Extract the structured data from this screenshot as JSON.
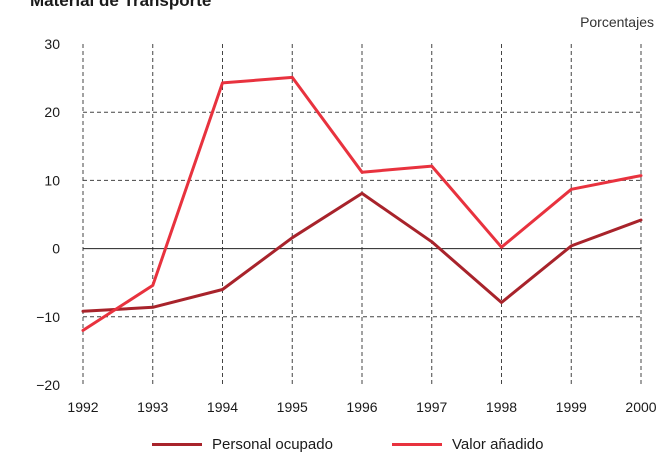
{
  "colors": {
    "personal": "#a8232b",
    "valor": "#e8323e",
    "grid": "#444444",
    "zero_line": "#222222"
  },
  "chart_data": {
    "type": "line",
    "title": "Material de Transporte",
    "units_label": "Porcentajes",
    "x": [
      "1992",
      "1993",
      "1994",
      "1995",
      "1996",
      "1997",
      "1998",
      "1999",
      "2000"
    ],
    "series": [
      {
        "name": "Personal ocupado",
        "values": [
          -9.2,
          -8.6,
          -6.0,
          1.6,
          8.1,
          1.0,
          -7.9,
          0.4,
          4.2
        ]
      },
      {
        "name": "Valor añadido",
        "values": [
          -12.0,
          -5.4,
          24.3,
          25.1,
          11.2,
          12.1,
          0.2,
          8.7,
          10.7
        ]
      }
    ],
    "y_ticks": [
      "30",
      "20",
      "10",
      "0",
      "−10",
      "−20"
    ],
    "ylim": [
      -20,
      30
    ],
    "grid": true,
    "legend": "bottom"
  }
}
